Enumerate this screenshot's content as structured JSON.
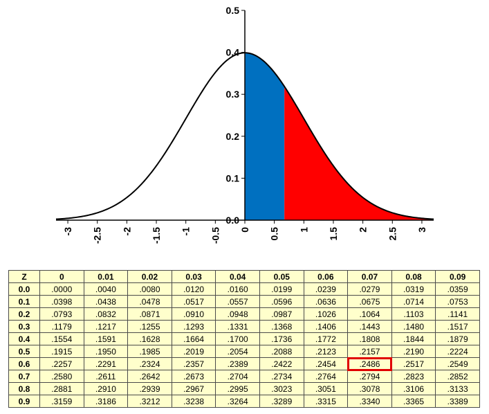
{
  "chart_data": {
    "type": "area",
    "curve": "standard normal density",
    "xlim": [
      -3.2,
      3.2
    ],
    "ylim": [
      0.0,
      0.5
    ],
    "xticks": [
      "-3",
      "-2.5",
      "-2",
      "-1.5",
      "-1",
      "-0.5",
      "0",
      "0.5",
      "1",
      "1.5",
      "2",
      "2.5",
      "3"
    ],
    "xtick_values": [
      -3,
      -2.5,
      -2,
      -1.5,
      -1,
      -0.5,
      0,
      0.5,
      1,
      1.5,
      2,
      2.5,
      3
    ],
    "yticks": [
      "0.0",
      "0.1",
      "0.2",
      "0.3",
      "0.4",
      "0.5"
    ],
    "ytick_values": [
      0.0,
      0.1,
      0.2,
      0.3,
      0.4,
      0.5
    ],
    "shaded_regions": [
      {
        "from": 0,
        "to": 0.67,
        "color": "#0070c0"
      },
      {
        "from": 0.67,
        "to": 3.2,
        "color": "#ff0000"
      }
    ],
    "line_color": "#000000"
  },
  "table": {
    "header": [
      "Z",
      "0",
      "0.01",
      "0.02",
      "0.03",
      "0.04",
      "0.05",
      "0.06",
      "0.07",
      "0.08",
      "0.09"
    ],
    "rows": [
      {
        "z": "0.0",
        "values": [
          ".0000",
          ".0040",
          ".0080",
          ".0120",
          ".0160",
          ".0199",
          ".0239",
          ".0279",
          ".0319",
          ".0359"
        ]
      },
      {
        "z": "0.1",
        "values": [
          ".0398",
          ".0438",
          ".0478",
          ".0517",
          ".0557",
          ".0596",
          ".0636",
          ".0675",
          ".0714",
          ".0753"
        ]
      },
      {
        "z": "0.2",
        "values": [
          ".0793",
          ".0832",
          ".0871",
          ".0910",
          ".0948",
          ".0987",
          ".1026",
          ".1064",
          ".1103",
          ".1141"
        ]
      },
      {
        "z": "0.3",
        "values": [
          ".1179",
          ".1217",
          ".1255",
          ".1293",
          ".1331",
          ".1368",
          ".1406",
          ".1443",
          ".1480",
          ".1517"
        ]
      },
      {
        "z": "0.4",
        "values": [
          ".1554",
          ".1591",
          ".1628",
          ".1664",
          ".1700",
          ".1736",
          ".1772",
          ".1808",
          ".1844",
          ".1879"
        ]
      },
      {
        "z": "0.5",
        "values": [
          ".1915",
          ".1950",
          ".1985",
          ".2019",
          ".2054",
          ".2088",
          ".2123",
          ".2157",
          ".2190",
          ".2224"
        ]
      },
      {
        "z": "0.6",
        "values": [
          ".2257",
          ".2291",
          ".2324",
          ".2357",
          ".2389",
          ".2422",
          ".2454",
          ".2486",
          ".2517",
          ".2549"
        ]
      },
      {
        "z": "0.7",
        "values": [
          ".2580",
          ".2611",
          ".2642",
          ".2673",
          ".2704",
          ".2734",
          ".2764",
          ".2794",
          ".2823",
          ".2852"
        ]
      },
      {
        "z": "0.8",
        "values": [
          ".2881",
          ".2910",
          ".2939",
          ".2967",
          ".2995",
          ".3023",
          ".3051",
          ".3078",
          ".3106",
          ".3133"
        ]
      },
      {
        "z": "0.9",
        "values": [
          ".3159",
          ".3186",
          ".3212",
          ".3238",
          ".3264",
          ".3289",
          ".3315",
          ".3340",
          ".3365",
          ".3389"
        ]
      }
    ],
    "highlight": {
      "row": "0.6",
      "col": "0.07",
      "color": "#e00000"
    },
    "background": "#ffffcc"
  }
}
